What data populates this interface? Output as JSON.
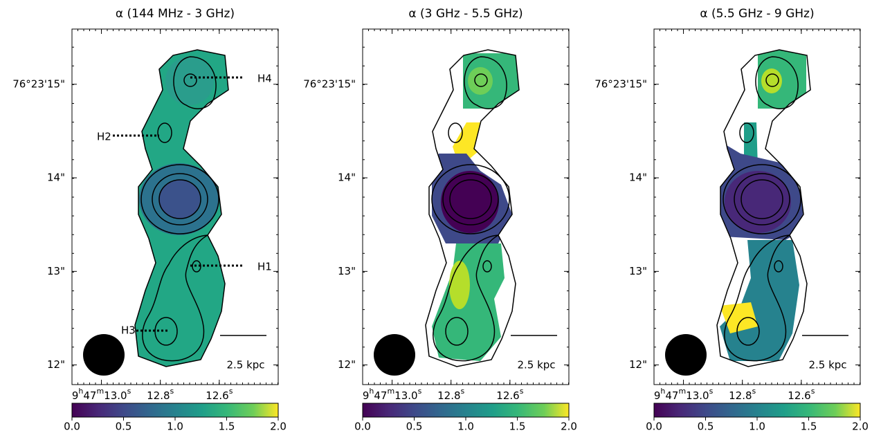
{
  "chart_data": [
    {
      "type": "map",
      "title": "α (144 MHz - 3 GHz)",
      "xlim": [
        13.1,
        12.4
      ],
      "xticks": [
        {
          "value": 13.0,
          "label": "9h47m13.0s"
        },
        {
          "value": 12.8,
          "label": "12.8s"
        },
        {
          "value": 12.6,
          "label": "12.6s"
        }
      ],
      "ylim": [
        11.79,
        15.59
      ],
      "yticks": [
        {
          "value": 12,
          "label": "12\""
        },
        {
          "value": 13,
          "label": "13\""
        },
        {
          "value": 14,
          "label": "14\""
        },
        {
          "value": 15,
          "label": "76°23'15\""
        }
      ],
      "colorbar": {
        "cmap": "viridis",
        "lim": [
          0,
          2
        ],
        "ticks": [
          {
            "value": 0,
            "label": "0.0"
          },
          {
            "value": 0.5,
            "label": "0.5"
          },
          {
            "value": 1,
            "label": "1.0"
          },
          {
            "value": 1.5,
            "label": "1.5"
          },
          {
            "value": 2,
            "label": "2.0"
          }
        ]
      },
      "annotations": [
        "H4",
        "H2",
        "H1",
        "H3"
      ],
      "scale_bar": "2.5 kpc"
    },
    {
      "type": "map",
      "title": "α (3 GHz - 5.5 GHz)",
      "xlim": [
        13.1,
        12.4
      ],
      "xticks": [
        {
          "value": 13.0,
          "label": "9h47m13.0s"
        },
        {
          "value": 12.8,
          "label": "12.8s"
        },
        {
          "value": 12.6,
          "label": "12.6s"
        }
      ],
      "ylim": [
        11.79,
        15.59
      ],
      "yticks": [
        {
          "value": 12,
          "label": "12\""
        },
        {
          "value": 13,
          "label": "13\""
        },
        {
          "value": 14,
          "label": "14\""
        },
        {
          "value": 15,
          "label": "76°23'15\""
        }
      ],
      "colorbar": {
        "cmap": "viridis",
        "lim": [
          0,
          2
        ],
        "ticks": [
          {
            "value": 0,
            "label": "0.0"
          },
          {
            "value": 0.5,
            "label": "0.5"
          },
          {
            "value": 1,
            "label": "1.0"
          },
          {
            "value": 1.5,
            "label": "1.5"
          },
          {
            "value": 2,
            "label": "2.0"
          }
        ]
      },
      "scale_bar": "2.5 kpc"
    },
    {
      "type": "map",
      "title": "α (5.5 GHz - 9 GHz)",
      "xlim": [
        13.1,
        12.4
      ],
      "xticks": [
        {
          "value": 13.0,
          "label": "9h47m13.0s"
        },
        {
          "value": 12.8,
          "label": "12.8s"
        },
        {
          "value": 12.6,
          "label": "12.6s"
        }
      ],
      "ylim": [
        11.79,
        15.59
      ],
      "yticks": [
        {
          "value": 12,
          "label": "12\""
        },
        {
          "value": 13,
          "label": "13\""
        },
        {
          "value": 14,
          "label": "14\""
        },
        {
          "value": 15,
          "label": "76°23'15\""
        }
      ],
      "colorbar": {
        "cmap": "viridis",
        "lim": [
          0,
          2
        ],
        "ticks": [
          {
            "value": 0,
            "label": "0.0"
          },
          {
            "value": 0.5,
            "label": "0.5"
          },
          {
            "value": 1,
            "label": "1.0"
          },
          {
            "value": 1.5,
            "label": "1.5"
          },
          {
            "value": 2,
            "label": "2.0"
          }
        ]
      },
      "scale_bar": "2.5 kpc"
    }
  ]
}
